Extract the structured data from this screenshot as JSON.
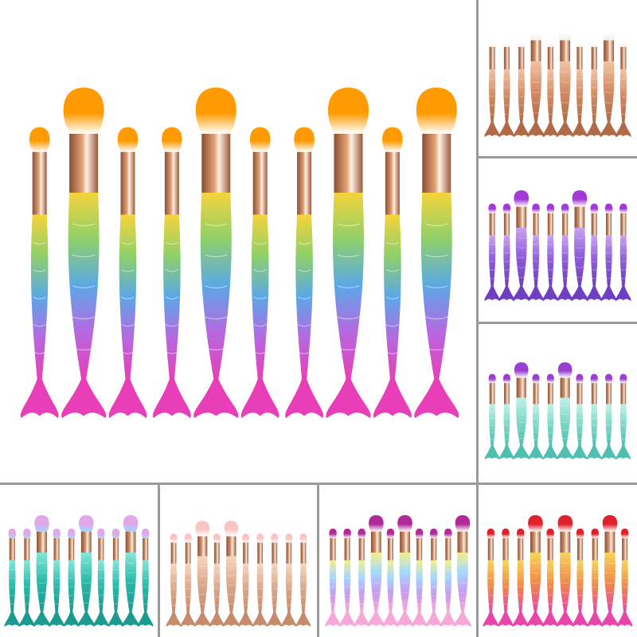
{
  "collage": {
    "panels": [
      {
        "id": "main",
        "variant": "rainbow-gold",
        "handle": [
          "#f5d33a",
          "#8fd06a",
          "#5aa8e8",
          "#b768e0",
          "#e83fb8"
        ],
        "hair": [
          "#ff9a00",
          "#ffffff"
        ],
        "ferrule": "#e3a277"
      },
      {
        "id": "right-1",
        "variant": "rose-gold",
        "handle": [
          "#f2c3a3",
          "#d48a63",
          "#b06a48"
        ],
        "hair": [
          "#ffffff",
          "#f7efe6"
        ],
        "ferrule": "#d99872"
      },
      {
        "id": "right-2",
        "variant": "violet",
        "handle": [
          "#c9a3f0",
          "#8e5bd8",
          "#6e3fc0"
        ],
        "hair": [
          "#a23bd6",
          "#ffffff"
        ],
        "ferrule": "#d49a74"
      },
      {
        "id": "right-3",
        "variant": "mint",
        "handle": [
          "#bff2e6",
          "#7fd8c8",
          "#4fbfb0"
        ],
        "hair": [
          "#9b3fd0",
          "#ffffff"
        ],
        "ferrule": "#d79a74"
      },
      {
        "id": "bottom-1",
        "variant": "teal",
        "handle": [
          "#86e6d8",
          "#29b8a8",
          "#1d9a90"
        ],
        "hair": [
          "#e0a8e8",
          "#9fd8ff"
        ],
        "ferrule": "#d79a74"
      },
      {
        "id": "bottom-2",
        "variant": "champagne",
        "handle": [
          "#f5d6bf",
          "#dca88a",
          "#c58b6c"
        ],
        "hair": [
          "#f7c6c0",
          "#ffffff"
        ],
        "ferrule": "#d99a76"
      },
      {
        "id": "bottom-3",
        "variant": "unicorn",
        "handle": [
          "#f2f08a",
          "#a2d8ff",
          "#c89af0",
          "#f7a8d8"
        ],
        "hair": [
          "#b02a9a",
          "#ffffff"
        ],
        "ferrule": "#d99a76"
      },
      {
        "id": "bottom-4",
        "variant": "sunset",
        "handle": [
          "#f7d45a",
          "#f08a4a",
          "#e845a8"
        ],
        "hair": [
          "#e0202a",
          "#ffffff"
        ],
        "ferrule": "#d99a76"
      }
    ],
    "background": "#ffffff",
    "divider_color": "#9a9a9a"
  }
}
